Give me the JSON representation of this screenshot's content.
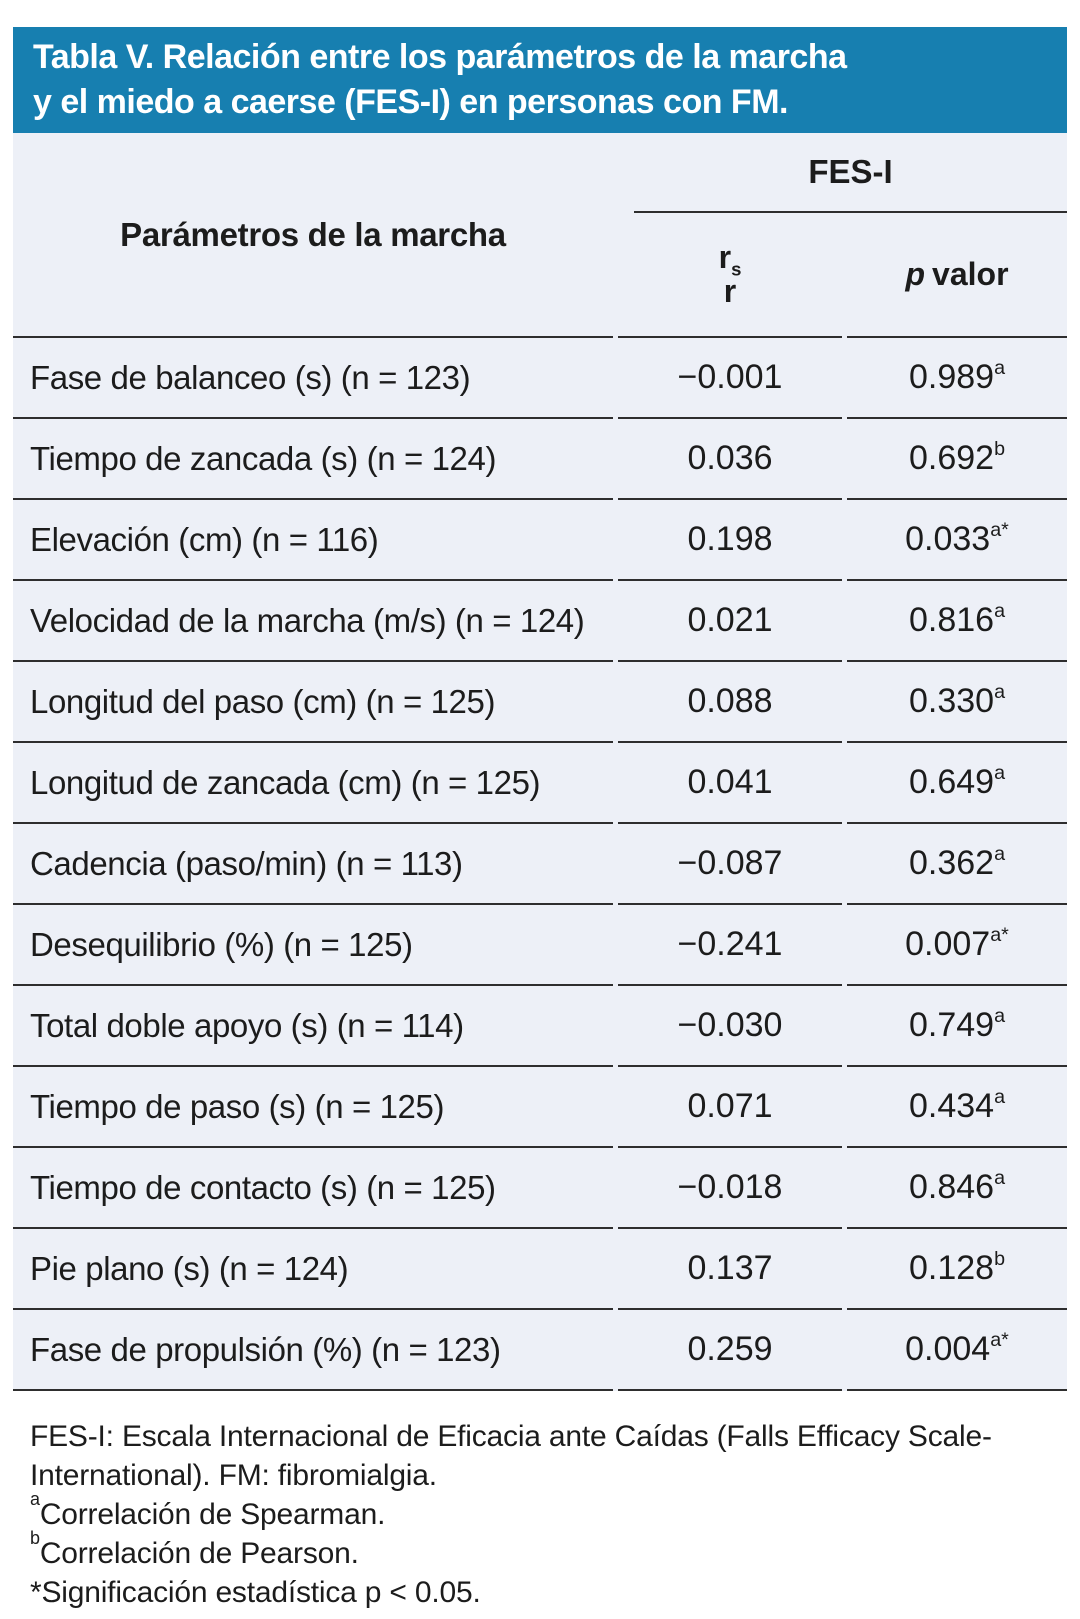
{
  "title": {
    "line1": "Tabla V. Relación entre los parámetros de la marcha",
    "line2": "y el miedo a caerse (FES-I) en personas con FM."
  },
  "table": {
    "param_header": "Parámetros de la marcha",
    "group_header": "FES-I",
    "col1_header": {
      "base": "r",
      "sub": "s",
      "line2": "r"
    },
    "col2_header": {
      "italic": "p",
      "rest": "valor"
    },
    "rows": [
      {
        "label": "Fase de balanceo (s) (n = 123)",
        "rs": "−0.001",
        "p": "0.989",
        "p_sup": "a"
      },
      {
        "label": "Tiempo de zancada (s) (n = 124)",
        "rs": "0.036",
        "p": "0.692",
        "p_sup": "b"
      },
      {
        "label": "Elevación (cm) (n = 116)",
        "rs": "0.198",
        "p": "0.033",
        "p_sup": "a*"
      },
      {
        "label": "Velocidad de la marcha (m/s) (n = 124)",
        "rs": "0.021",
        "p": "0.816",
        "p_sup": "a"
      },
      {
        "label": "Longitud del paso (cm) (n = 125)",
        "rs": "0.088",
        "p": "0.330",
        "p_sup": "a"
      },
      {
        "label": "Longitud de zancada (cm) (n = 125)",
        "rs": "0.041",
        "p": "0.649",
        "p_sup": "a"
      },
      {
        "label": "Cadencia (paso/min) (n = 113)",
        "rs": "−0.087",
        "p": "0.362",
        "p_sup": "a"
      },
      {
        "label": "Desequilibrio (%) (n = 125)",
        "rs": "−0.241",
        "p": "0.007",
        "p_sup": "a*"
      },
      {
        "label": "Total doble apoyo (s) (n = 114)",
        "rs": "−0.030",
        "p": "0.749",
        "p_sup": "a"
      },
      {
        "label": "Tiempo de paso (s) (n = 125)",
        "rs": "0.071",
        "p": "0.434",
        "p_sup": "a"
      },
      {
        "label": "Tiempo de contacto (s) (n = 125)",
        "rs": "−0.018",
        "p": "0.846",
        "p_sup": "a"
      },
      {
        "label": "Pie plano (s) (n = 124)",
        "rs": "0.137",
        "p": "0.128",
        "p_sup": "b"
      },
      {
        "label": "Fase de propulsión (%) (n = 123)",
        "rs": "0.259",
        "p": "0.004",
        "p_sup": "a*"
      }
    ]
  },
  "footnotes": {
    "abbrev_line1": "FES-I: Escala Internacional de Eficacia ante Caídas (Falls Efficacy Scale-",
    "abbrev_line2": "International). FM: fibromialgia.",
    "spearman_sup": "a",
    "spearman_text": "Correlación de Spearman.",
    "pearson_sup": "b",
    "pearson_text": "Correlación de Pearson.",
    "significance": "*Significación estadística p < 0.05."
  },
  "colors": {
    "banner_blue": "#177FB0",
    "table_background": "#EDF0F7",
    "rule_line": "#2E2E2E",
    "text": "#1C1C1C",
    "title_text": "#FFFFFF"
  }
}
